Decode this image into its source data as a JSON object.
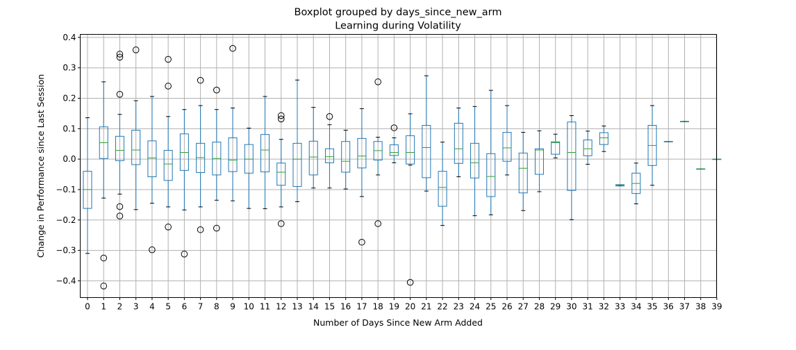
{
  "chart_data": {
    "type": "box",
    "title": "Boxplot grouped by days_since_new_arm",
    "subtitle": "Learning during Volatility",
    "xlabel": "Number of Days Since New Arm Added",
    "ylabel": "Change in Performance since Last Session",
    "ylim": [
      -0.455,
      0.41
    ],
    "yticks": [
      -0.4,
      -0.3,
      -0.2,
      -0.1,
      0.0,
      0.1,
      0.2,
      0.3,
      0.4
    ],
    "ytick_labels": [
      "−0.4",
      "−0.3",
      "−0.2",
      "−0.1",
      "0.0",
      "0.1",
      "0.2",
      "0.3",
      "0.4"
    ],
    "grid": true,
    "categories": [
      "0",
      "1",
      "2",
      "3",
      "4",
      "5",
      "6",
      "7",
      "8",
      "9",
      "10",
      "11",
      "12",
      "13",
      "14",
      "15",
      "16",
      "17",
      "18",
      "19",
      "20",
      "21",
      "22",
      "23",
      "24",
      "25",
      "26",
      "27",
      "28",
      "29",
      "30",
      "31",
      "32",
      "33",
      "34",
      "35",
      "36",
      "37",
      "38",
      "39"
    ],
    "colors": {
      "box": "#1f77b4",
      "median": "#2ca02c",
      "whisker_cap": "#000000",
      "grid": "#b0b0b0"
    },
    "boxes": [
      {
        "category": "0",
        "whislo": -0.31,
        "q1": -0.162,
        "med": -0.1,
        "q3": -0.04,
        "whishi": 0.136,
        "fliers": []
      },
      {
        "category": "1",
        "whislo": -0.128,
        "q1": 0.002,
        "med": 0.054,
        "q3": 0.106,
        "whishi": 0.254,
        "fliers": [
          -0.325,
          -0.417
        ]
      },
      {
        "category": "2",
        "whislo": -0.115,
        "q1": -0.005,
        "med": 0.029,
        "q3": 0.075,
        "whishi": 0.147,
        "fliers": [
          0.345,
          0.335,
          0.213,
          -0.156,
          -0.187
        ]
      },
      {
        "category": "3",
        "whislo": -0.166,
        "q1": -0.018,
        "med": 0.03,
        "q3": 0.095,
        "whishi": 0.192,
        "fliers": [
          0.359
        ]
      },
      {
        "category": "4",
        "whislo": -0.145,
        "q1": -0.058,
        "med": 0.004,
        "q3": 0.06,
        "whishi": 0.206,
        "fliers": [
          -0.298
        ]
      },
      {
        "category": "5",
        "whislo": -0.157,
        "q1": -0.07,
        "med": -0.016,
        "q3": 0.029,
        "whishi": 0.14,
        "fliers": [
          0.328,
          0.24,
          -0.223
        ]
      },
      {
        "category": "6",
        "whislo": -0.167,
        "q1": -0.037,
        "med": 0.022,
        "q3": 0.083,
        "whishi": 0.163,
        "fliers": [
          -0.312
        ]
      },
      {
        "category": "7",
        "whislo": -0.157,
        "q1": -0.044,
        "med": 0.005,
        "q3": 0.052,
        "whishi": 0.176,
        "fliers": [
          0.259,
          -0.232
        ]
      },
      {
        "category": "8",
        "whislo": -0.135,
        "q1": -0.052,
        "med": 0.002,
        "q3": 0.056,
        "whishi": 0.163,
        "fliers": [
          0.227,
          -0.227
        ]
      },
      {
        "category": "9",
        "whislo": -0.137,
        "q1": -0.041,
        "med": -0.003,
        "q3": 0.07,
        "whishi": 0.168,
        "fliers": [
          0.364
        ]
      },
      {
        "category": "10",
        "whislo": -0.162,
        "q1": -0.046,
        "med": 0.0,
        "q3": 0.048,
        "whishi": 0.102,
        "fliers": []
      },
      {
        "category": "11",
        "whislo": -0.163,
        "q1": -0.042,
        "med": 0.03,
        "q3": 0.081,
        "whishi": 0.206,
        "fliers": []
      },
      {
        "category": "12",
        "whislo": -0.157,
        "q1": -0.086,
        "med": -0.043,
        "q3": -0.013,
        "whishi": 0.065,
        "fliers": [
          0.143,
          0.132,
          -0.212
        ]
      },
      {
        "category": "13",
        "whislo": -0.14,
        "q1": -0.09,
        "med": 0.0,
        "q3": 0.052,
        "whishi": 0.26,
        "fliers": []
      },
      {
        "category": "14",
        "whislo": -0.095,
        "q1": -0.052,
        "med": 0.007,
        "q3": 0.059,
        "whishi": 0.17,
        "fliers": []
      },
      {
        "category": "15",
        "whislo": -0.095,
        "q1": -0.012,
        "med": 0.008,
        "q3": 0.034,
        "whishi": 0.113,
        "fliers": [
          0.14
        ]
      },
      {
        "category": "16",
        "whislo": -0.098,
        "q1": -0.043,
        "med": -0.007,
        "q3": 0.058,
        "whishi": 0.095,
        "fliers": []
      },
      {
        "category": "17",
        "whislo": -0.123,
        "q1": -0.029,
        "med": 0.01,
        "q3": 0.068,
        "whishi": 0.166,
        "fliers": [
          -0.273
        ]
      },
      {
        "category": "18",
        "whislo": -0.052,
        "q1": -0.003,
        "med": 0.028,
        "q3": 0.058,
        "whishi": 0.072,
        "fliers": [
          0.254,
          -0.212
        ]
      },
      {
        "category": "19",
        "whislo": -0.012,
        "q1": 0.012,
        "med": 0.022,
        "q3": 0.047,
        "whishi": 0.07,
        "fliers": [
          0.103
        ]
      },
      {
        "category": "20",
        "whislo": -0.02,
        "q1": -0.016,
        "med": 0.022,
        "q3": 0.077,
        "whishi": 0.149,
        "fliers": [
          -0.405
        ]
      },
      {
        "category": "21",
        "whislo": -0.105,
        "q1": -0.061,
        "med": 0.038,
        "q3": 0.111,
        "whishi": 0.274,
        "fliers": []
      },
      {
        "category": "22",
        "whislo": -0.218,
        "q1": -0.155,
        "med": -0.093,
        "q3": -0.04,
        "whishi": 0.056,
        "fliers": []
      },
      {
        "category": "23",
        "whislo": -0.058,
        "q1": -0.014,
        "med": 0.034,
        "q3": 0.118,
        "whishi": 0.168,
        "fliers": []
      },
      {
        "category": "24",
        "whislo": -0.186,
        "q1": -0.062,
        "med": -0.012,
        "q3": 0.052,
        "whishi": 0.173,
        "fliers": []
      },
      {
        "category": "25",
        "whislo": -0.183,
        "q1": -0.123,
        "med": -0.057,
        "q3": 0.018,
        "whishi": 0.226,
        "fliers": []
      },
      {
        "category": "26",
        "whislo": -0.052,
        "q1": -0.007,
        "med": 0.037,
        "q3": 0.088,
        "whishi": 0.176,
        "fliers": []
      },
      {
        "category": "27",
        "whislo": -0.169,
        "q1": -0.111,
        "med": -0.03,
        "q3": 0.02,
        "whishi": 0.088,
        "fliers": []
      },
      {
        "category": "28",
        "whislo": -0.107,
        "q1": -0.05,
        "med": 0.03,
        "q3": 0.034,
        "whishi": 0.093,
        "fliers": []
      },
      {
        "category": "29",
        "whislo": 0.004,
        "q1": 0.016,
        "med": 0.054,
        "q3": 0.057,
        "whishi": 0.082,
        "fliers": []
      },
      {
        "category": "30",
        "whislo": -0.199,
        "q1": -0.103,
        "med": 0.022,
        "q3": 0.122,
        "whishi": 0.143,
        "fliers": []
      },
      {
        "category": "31",
        "whislo": -0.017,
        "q1": 0.011,
        "med": 0.034,
        "q3": 0.063,
        "whishi": 0.092,
        "fliers": []
      },
      {
        "category": "32",
        "whislo": 0.025,
        "q1": 0.048,
        "med": 0.07,
        "q3": 0.087,
        "whishi": 0.109,
        "fliers": []
      },
      {
        "category": "33",
        "whislo": -0.088,
        "q1": -0.088,
        "med": -0.086,
        "q3": -0.084,
        "whishi": -0.084,
        "fliers": []
      },
      {
        "category": "34",
        "whislo": -0.147,
        "q1": -0.113,
        "med": -0.08,
        "q3": -0.046,
        "whishi": -0.013,
        "fliers": []
      },
      {
        "category": "35",
        "whislo": -0.086,
        "q1": -0.021,
        "med": 0.045,
        "q3": 0.111,
        "whishi": 0.176,
        "fliers": []
      },
      {
        "category": "36",
        "whislo": 0.058,
        "q1": 0.058,
        "med": 0.058,
        "q3": 0.058,
        "whishi": 0.058,
        "fliers": []
      },
      {
        "category": "37",
        "whislo": 0.124,
        "q1": 0.124,
        "med": 0.124,
        "q3": 0.124,
        "whishi": 0.124,
        "fliers": []
      },
      {
        "category": "38",
        "whislo": -0.032,
        "q1": -0.032,
        "med": -0.032,
        "q3": -0.032,
        "whishi": -0.032,
        "fliers": []
      },
      {
        "category": "39",
        "whislo": 0.0,
        "q1": 0.0,
        "med": 0.0,
        "q3": 0.0,
        "whishi": 0.0,
        "fliers": []
      }
    ]
  }
}
